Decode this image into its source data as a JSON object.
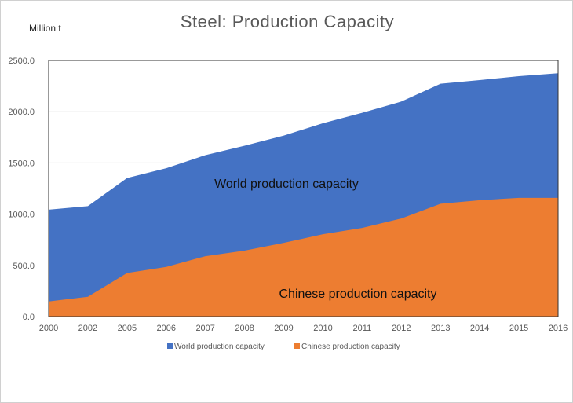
{
  "chart_data": {
    "type": "area",
    "title": "Steel: Production Capacity",
    "ylabel": "Million t",
    "xlabel": "",
    "categories": [
      "2000",
      "2002",
      "2005",
      "2006",
      "2007",
      "2008",
      "2009",
      "2010",
      "2011",
      "2012",
      "2013",
      "2014",
      "2015",
      "2016"
    ],
    "ylim": [
      0,
      2500
    ],
    "yticks": [
      "0.0",
      "500.0",
      "1000.0",
      "1500.0",
      "2000.0",
      "2500.0"
    ],
    "grid": true,
    "legend": "bottom",
    "series": [
      {
        "name": "World production capacity",
        "color": "#4472c4",
        "values": [
          1044,
          1078,
          1353,
          1448,
          1576,
          1668,
          1767,
          1887,
          1989,
          2099,
          2273,
          2308,
          2347,
          2375
        ]
      },
      {
        "name": "Chinese production capacity",
        "color": "#ed7d31",
        "values": [
          148,
          194,
          426,
          485,
          590,
          644,
          720,
          804,
          866,
          958,
          1101,
          1136,
          1159,
          1159
        ]
      }
    ],
    "annotations": [
      "World production capacity",
      "Chinese production capacity"
    ]
  }
}
